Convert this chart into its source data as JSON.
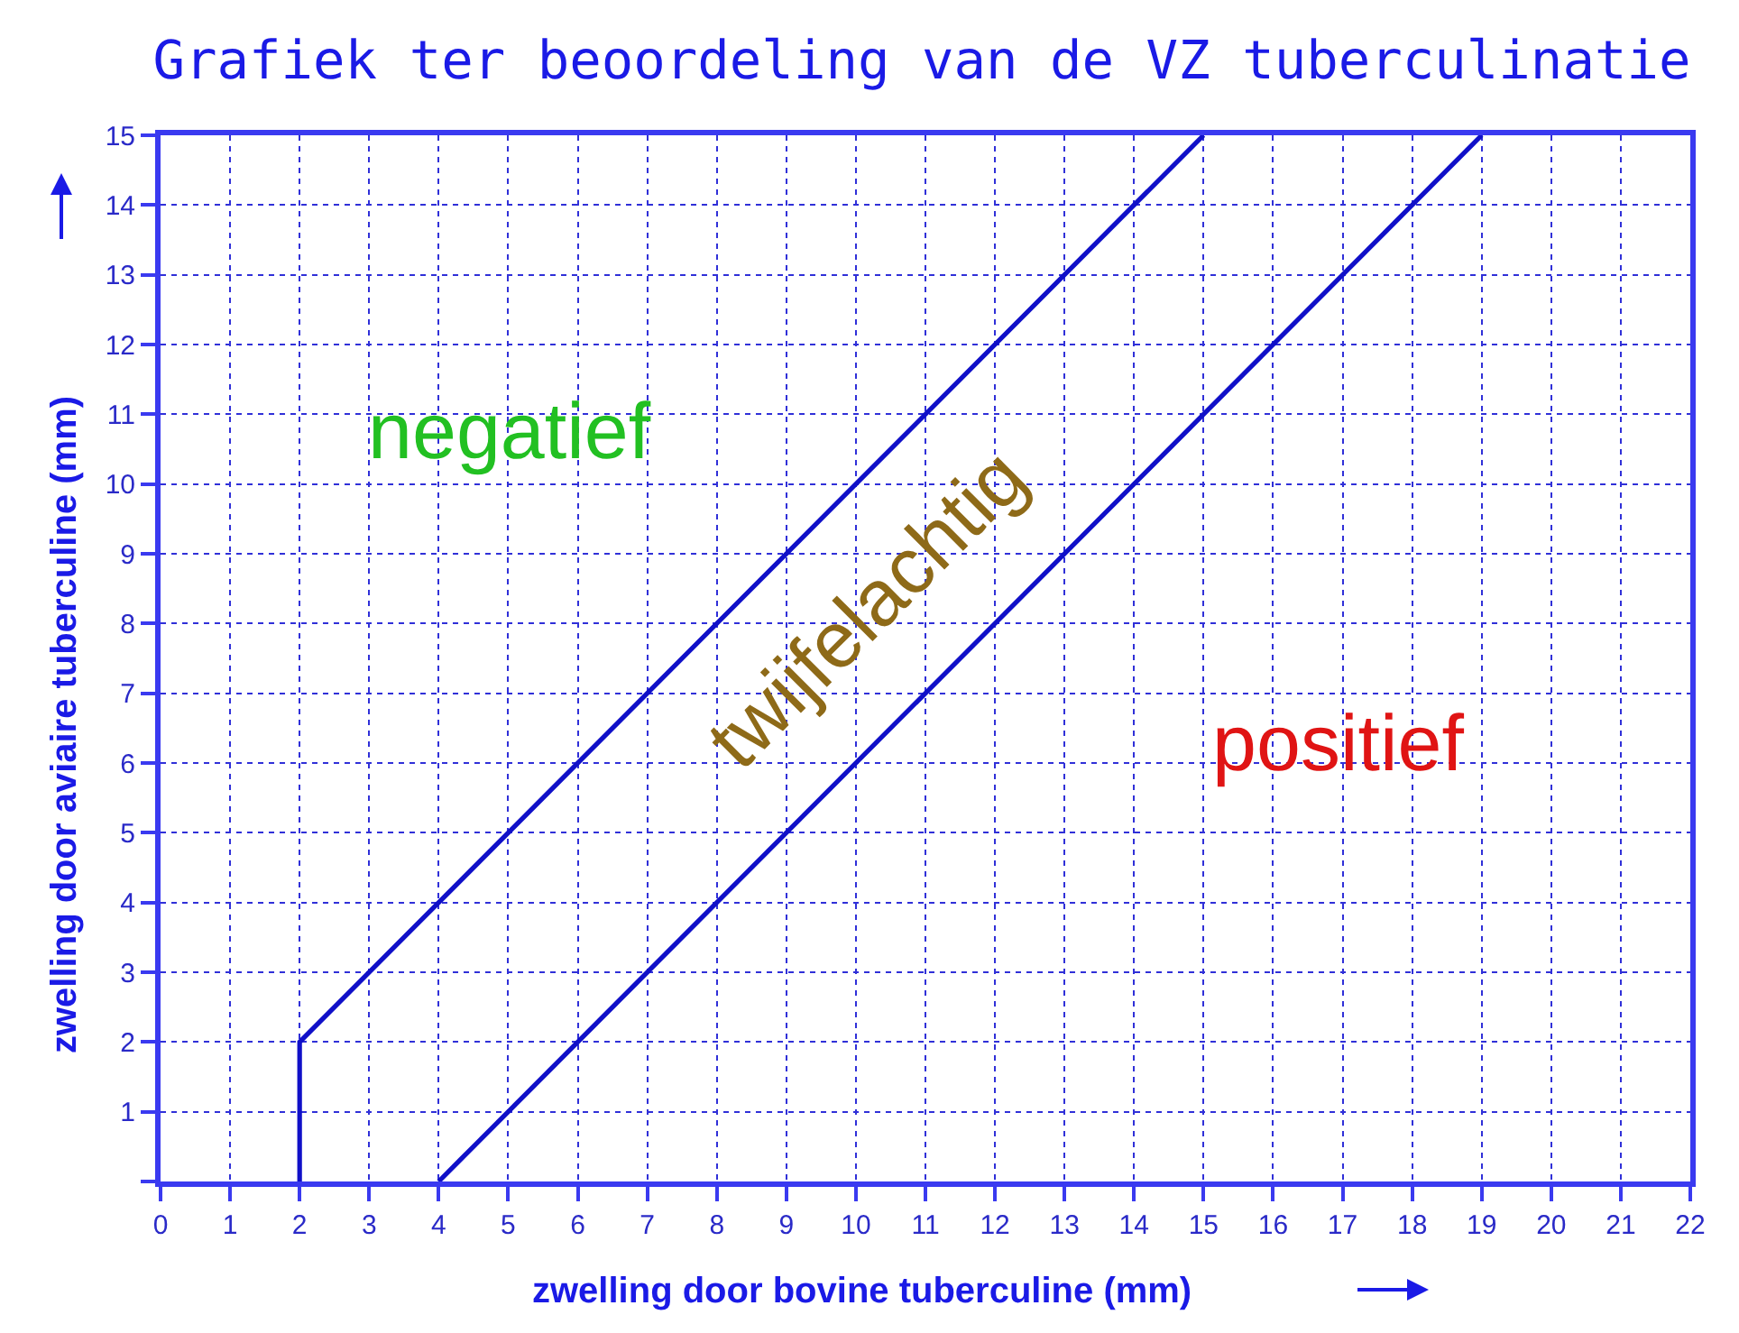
{
  "chart_data": {
    "type": "line",
    "title": "Grafiek ter beoordeling van de VZ tuberculinatie",
    "xlabel": "zwelling door bovine tuberculine (mm)",
    "ylabel": "zwelling door aviaire tuberculine (mm)",
    "series": [
      {
        "color": "#1010c8",
        "x": [
          2,
          2,
          15
        ],
        "values": [
          0,
          2,
          15
        ]
      },
      {
        "color": "#1010c8",
        "x": [
          4,
          19
        ],
        "values": [
          0,
          15
        ]
      }
    ],
    "xlim": [
      0,
      22
    ],
    "ylim": [
      0,
      15
    ],
    "xticks": [
      0,
      1,
      2,
      3,
      4,
      5,
      6,
      7,
      8,
      9,
      10,
      11,
      12,
      13,
      14,
      15,
      16,
      17,
      18,
      19,
      20,
      21,
      22
    ],
    "yticks": [
      {
        "value": 0,
        "label": null
      },
      1,
      2,
      3,
      4,
      5,
      6,
      7,
      8,
      9,
      10,
      11,
      12,
      13,
      14,
      15
    ],
    "annotations": [
      "negatief",
      "twijfelachtig",
      "positief"
    ],
    "grid": true,
    "marker": "none",
    "line_style": "solid"
  }
}
